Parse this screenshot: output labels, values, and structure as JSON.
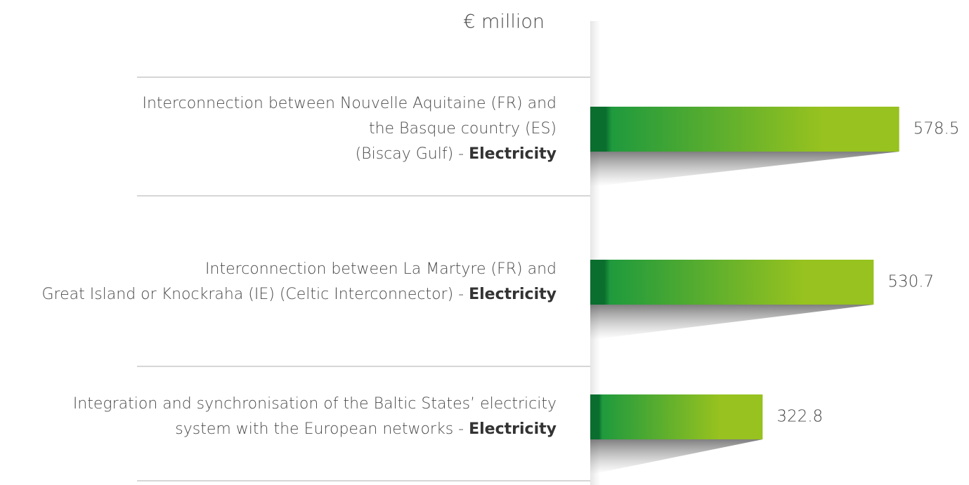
{
  "chart_data": {
    "type": "bar",
    "orientation": "horizontal",
    "axis_label": "€ million",
    "categories": [
      [
        "Interconnection between Nouvelle Aquitaine (FR) and",
        "the Basque country (ES)",
        "(Biscay Gulf) -"
      ],
      [
        "Interconnection between La Martyre (FR) and",
        "Great Island or Knockraha (IE) (Celtic Interconnector) -"
      ],
      [
        "Integration and synchronisation of the Baltic States’ electricity",
        "system with the European networks -"
      ]
    ],
    "category_tags": [
      "Electricity",
      "Electricity",
      "Electricity"
    ],
    "values": [
      578.5,
      530.7,
      322.8
    ],
    "color": "#97c21f",
    "color_start": "#0a6e2e",
    "xlim": [
      0,
      600
    ]
  }
}
